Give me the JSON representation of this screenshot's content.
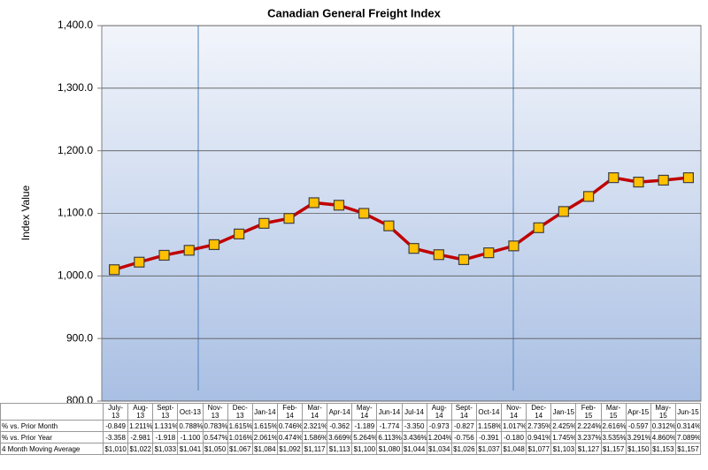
{
  "chart_data": {
    "type": "line",
    "title": "Canadian General Freight Index",
    "y_label": "Index Value",
    "categories": [
      "July-13",
      "Aug-13",
      "Sept-13",
      "Oct-13",
      "Nov-13",
      "Dec-13",
      "Jan-14",
      "Feb-14",
      "Mar-14",
      "Apr-14",
      "May-14",
      "Jun-14",
      "Jul-14",
      "Aug-14",
      "Sept-14",
      "Oct-14",
      "Nov-14",
      "Dec-14",
      "Jan-15",
      "Feb-15",
      "Mar-15",
      "Apr-15",
      "May-15",
      "Jun-15"
    ],
    "table_rows": [
      {
        "name": "% vs. Prior Month",
        "values": [
          "-0.849",
          "1.211%",
          "1.131%",
          "0.788%",
          "0.783%",
          "1.615%",
          "1.615%",
          "0.746%",
          "2.321%",
          "-0.362",
          "-1.189",
          "-1.774",
          "-3.350",
          "-0.973",
          "-0.827",
          "1.158%",
          "1.017%",
          "2.735%",
          "2.425%",
          "2.224%",
          "2.616%",
          "-0.597",
          "0.312%",
          "0.314%"
        ]
      },
      {
        "name": "% vs. Prior Year",
        "values": [
          "-3.358",
          "-2.981",
          "-1.918",
          "-1.100",
          "0.547%",
          "1.016%",
          "2.061%",
          "0.474%",
          "1.586%",
          "3.669%",
          "5.264%",
          "6.113%",
          "3.436%",
          "1.204%",
          "-0.756",
          "-0.391",
          "-0.180",
          "0.941%",
          "1.745%",
          "3.237%",
          "3.535%",
          "3.291%",
          "4.860%",
          "7.089%"
        ]
      }
    ],
    "series": [
      {
        "name": "4 Month Moving Average",
        "color": "#c00000",
        "marker_color": "#ffc000",
        "values": [
          1010,
          1022,
          1033,
          1041,
          1050,
          1067,
          1084,
          1092,
          1117,
          1113,
          1100,
          1080,
          1044,
          1034,
          1026,
          1037,
          1048,
          1077,
          1103,
          1127,
          1157,
          1150,
          1153,
          1157
        ],
        "value_labels": [
          "$1,010",
          "$1,022",
          "$1,033",
          "$1,041",
          "$1,050",
          "$1,067",
          "$1,084",
          "$1,092",
          "$1,117",
          "$1,113",
          "$1,100",
          "$1,080",
          "$1,044",
          "$1,034",
          "$1,026",
          "$1,037",
          "$1,048",
          "$1,077",
          "$1,103",
          "$1,127",
          "$1,157",
          "$1,150",
          "$1,153",
          "$1,157"
        ]
      }
    ],
    "ylim": [
      800,
      1400
    ],
    "yticks": [
      {
        "value": 800,
        "label": "800.0"
      },
      {
        "value": 900,
        "label": "900.0"
      },
      {
        "value": 1000,
        "label": "1,000.0"
      },
      {
        "value": 1100,
        "label": "1,100.0"
      },
      {
        "value": 1200,
        "label": "1,200.0"
      },
      {
        "value": 1300,
        "label": "1,300.0"
      },
      {
        "value": 1400,
        "label": "1,400.0"
      }
    ],
    "grid": true
  }
}
